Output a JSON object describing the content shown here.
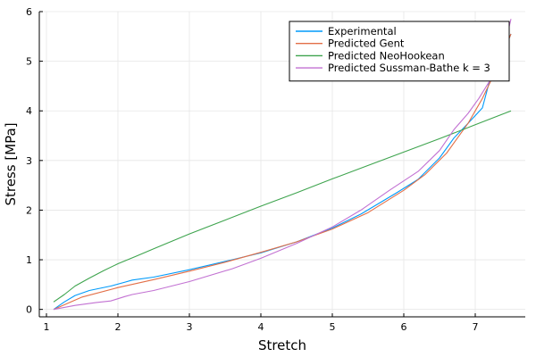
{
  "chart_data": {
    "type": "line",
    "title": "",
    "xlabel": "Stretch",
    "ylabel": "Stress [MPa]",
    "xlim": [
      0.9,
      7.7
    ],
    "ylim": [
      -0.15,
      6.0
    ],
    "xticks": [
      1,
      2,
      3,
      4,
      5,
      6,
      7
    ],
    "yticks": [
      0,
      1,
      2,
      3,
      4,
      5,
      6
    ],
    "grid": true,
    "legend_position": "top-right",
    "series": [
      {
        "name": "Experimental",
        "color": "#009AFA",
        "points": [
          [
            1.1,
            0.0
          ],
          [
            1.25,
            0.15
          ],
          [
            1.4,
            0.28
          ],
          [
            1.6,
            0.38
          ],
          [
            1.9,
            0.47
          ],
          [
            2.1,
            0.55
          ],
          [
            2.2,
            0.59
          ],
          [
            2.5,
            0.65
          ],
          [
            3.0,
            0.8
          ],
          [
            3.6,
            1.0
          ],
          [
            4.0,
            1.14
          ],
          [
            4.5,
            1.36
          ],
          [
            5.0,
            1.64
          ],
          [
            5.4,
            1.92
          ],
          [
            5.9,
            2.35
          ],
          [
            6.2,
            2.62
          ],
          [
            6.5,
            3.05
          ],
          [
            6.7,
            3.45
          ],
          [
            6.9,
            3.75
          ],
          [
            7.1,
            4.06
          ],
          [
            7.2,
            4.6
          ],
          [
            7.3,
            4.9
          ],
          [
            7.4,
            5.2
          ],
          [
            7.5,
            5.55
          ]
        ]
      },
      {
        "name": "Predicted Gent",
        "color": "#E36F47",
        "points": [
          [
            1.1,
            0.0
          ],
          [
            1.5,
            0.25
          ],
          [
            2.0,
            0.44
          ],
          [
            2.5,
            0.6
          ],
          [
            3.0,
            0.77
          ],
          [
            3.5,
            0.95
          ],
          [
            4.0,
            1.15
          ],
          [
            4.5,
            1.36
          ],
          [
            5.0,
            1.62
          ],
          [
            5.5,
            1.95
          ],
          [
            6.0,
            2.4
          ],
          [
            6.3,
            2.72
          ],
          [
            6.6,
            3.15
          ],
          [
            6.9,
            3.75
          ],
          [
            7.1,
            4.25
          ],
          [
            7.3,
            4.85
          ],
          [
            7.5,
            5.55
          ]
        ]
      },
      {
        "name": "Predicted NeoHookean",
        "color": "#3EA44E",
        "points": [
          [
            1.1,
            0.15
          ],
          [
            1.25,
            0.3
          ],
          [
            1.4,
            0.47
          ],
          [
            1.6,
            0.63
          ],
          [
            1.8,
            0.78
          ],
          [
            2.0,
            0.92
          ],
          [
            2.25,
            1.07
          ],
          [
            2.5,
            1.22
          ],
          [
            3.0,
            1.52
          ],
          [
            3.5,
            1.8
          ],
          [
            4.0,
            2.08
          ],
          [
            4.5,
            2.35
          ],
          [
            5.0,
            2.63
          ],
          [
            5.5,
            2.9
          ],
          [
            6.0,
            3.17
          ],
          [
            6.5,
            3.44
          ],
          [
            7.0,
            3.72
          ],
          [
            7.5,
            4.0
          ]
        ]
      },
      {
        "name": "Predicted Sussman-Bathe k = 3",
        "color": "#C271D2",
        "points": [
          [
            1.1,
            0.0
          ],
          [
            1.4,
            0.08
          ],
          [
            1.7,
            0.14
          ],
          [
            1.9,
            0.17
          ],
          [
            2.1,
            0.26
          ],
          [
            2.2,
            0.3
          ],
          [
            2.5,
            0.38
          ],
          [
            3.0,
            0.56
          ],
          [
            3.6,
            0.82
          ],
          [
            4.0,
            1.03
          ],
          [
            4.5,
            1.33
          ],
          [
            5.0,
            1.66
          ],
          [
            5.4,
            2.0
          ],
          [
            5.8,
            2.4
          ],
          [
            6.2,
            2.78
          ],
          [
            6.5,
            3.2
          ],
          [
            6.7,
            3.62
          ],
          [
            6.9,
            3.95
          ],
          [
            7.05,
            4.25
          ],
          [
            7.2,
            4.6
          ],
          [
            7.3,
            5.2
          ],
          [
            7.45,
            5.55
          ],
          [
            7.5,
            5.85
          ]
        ]
      }
    ]
  }
}
